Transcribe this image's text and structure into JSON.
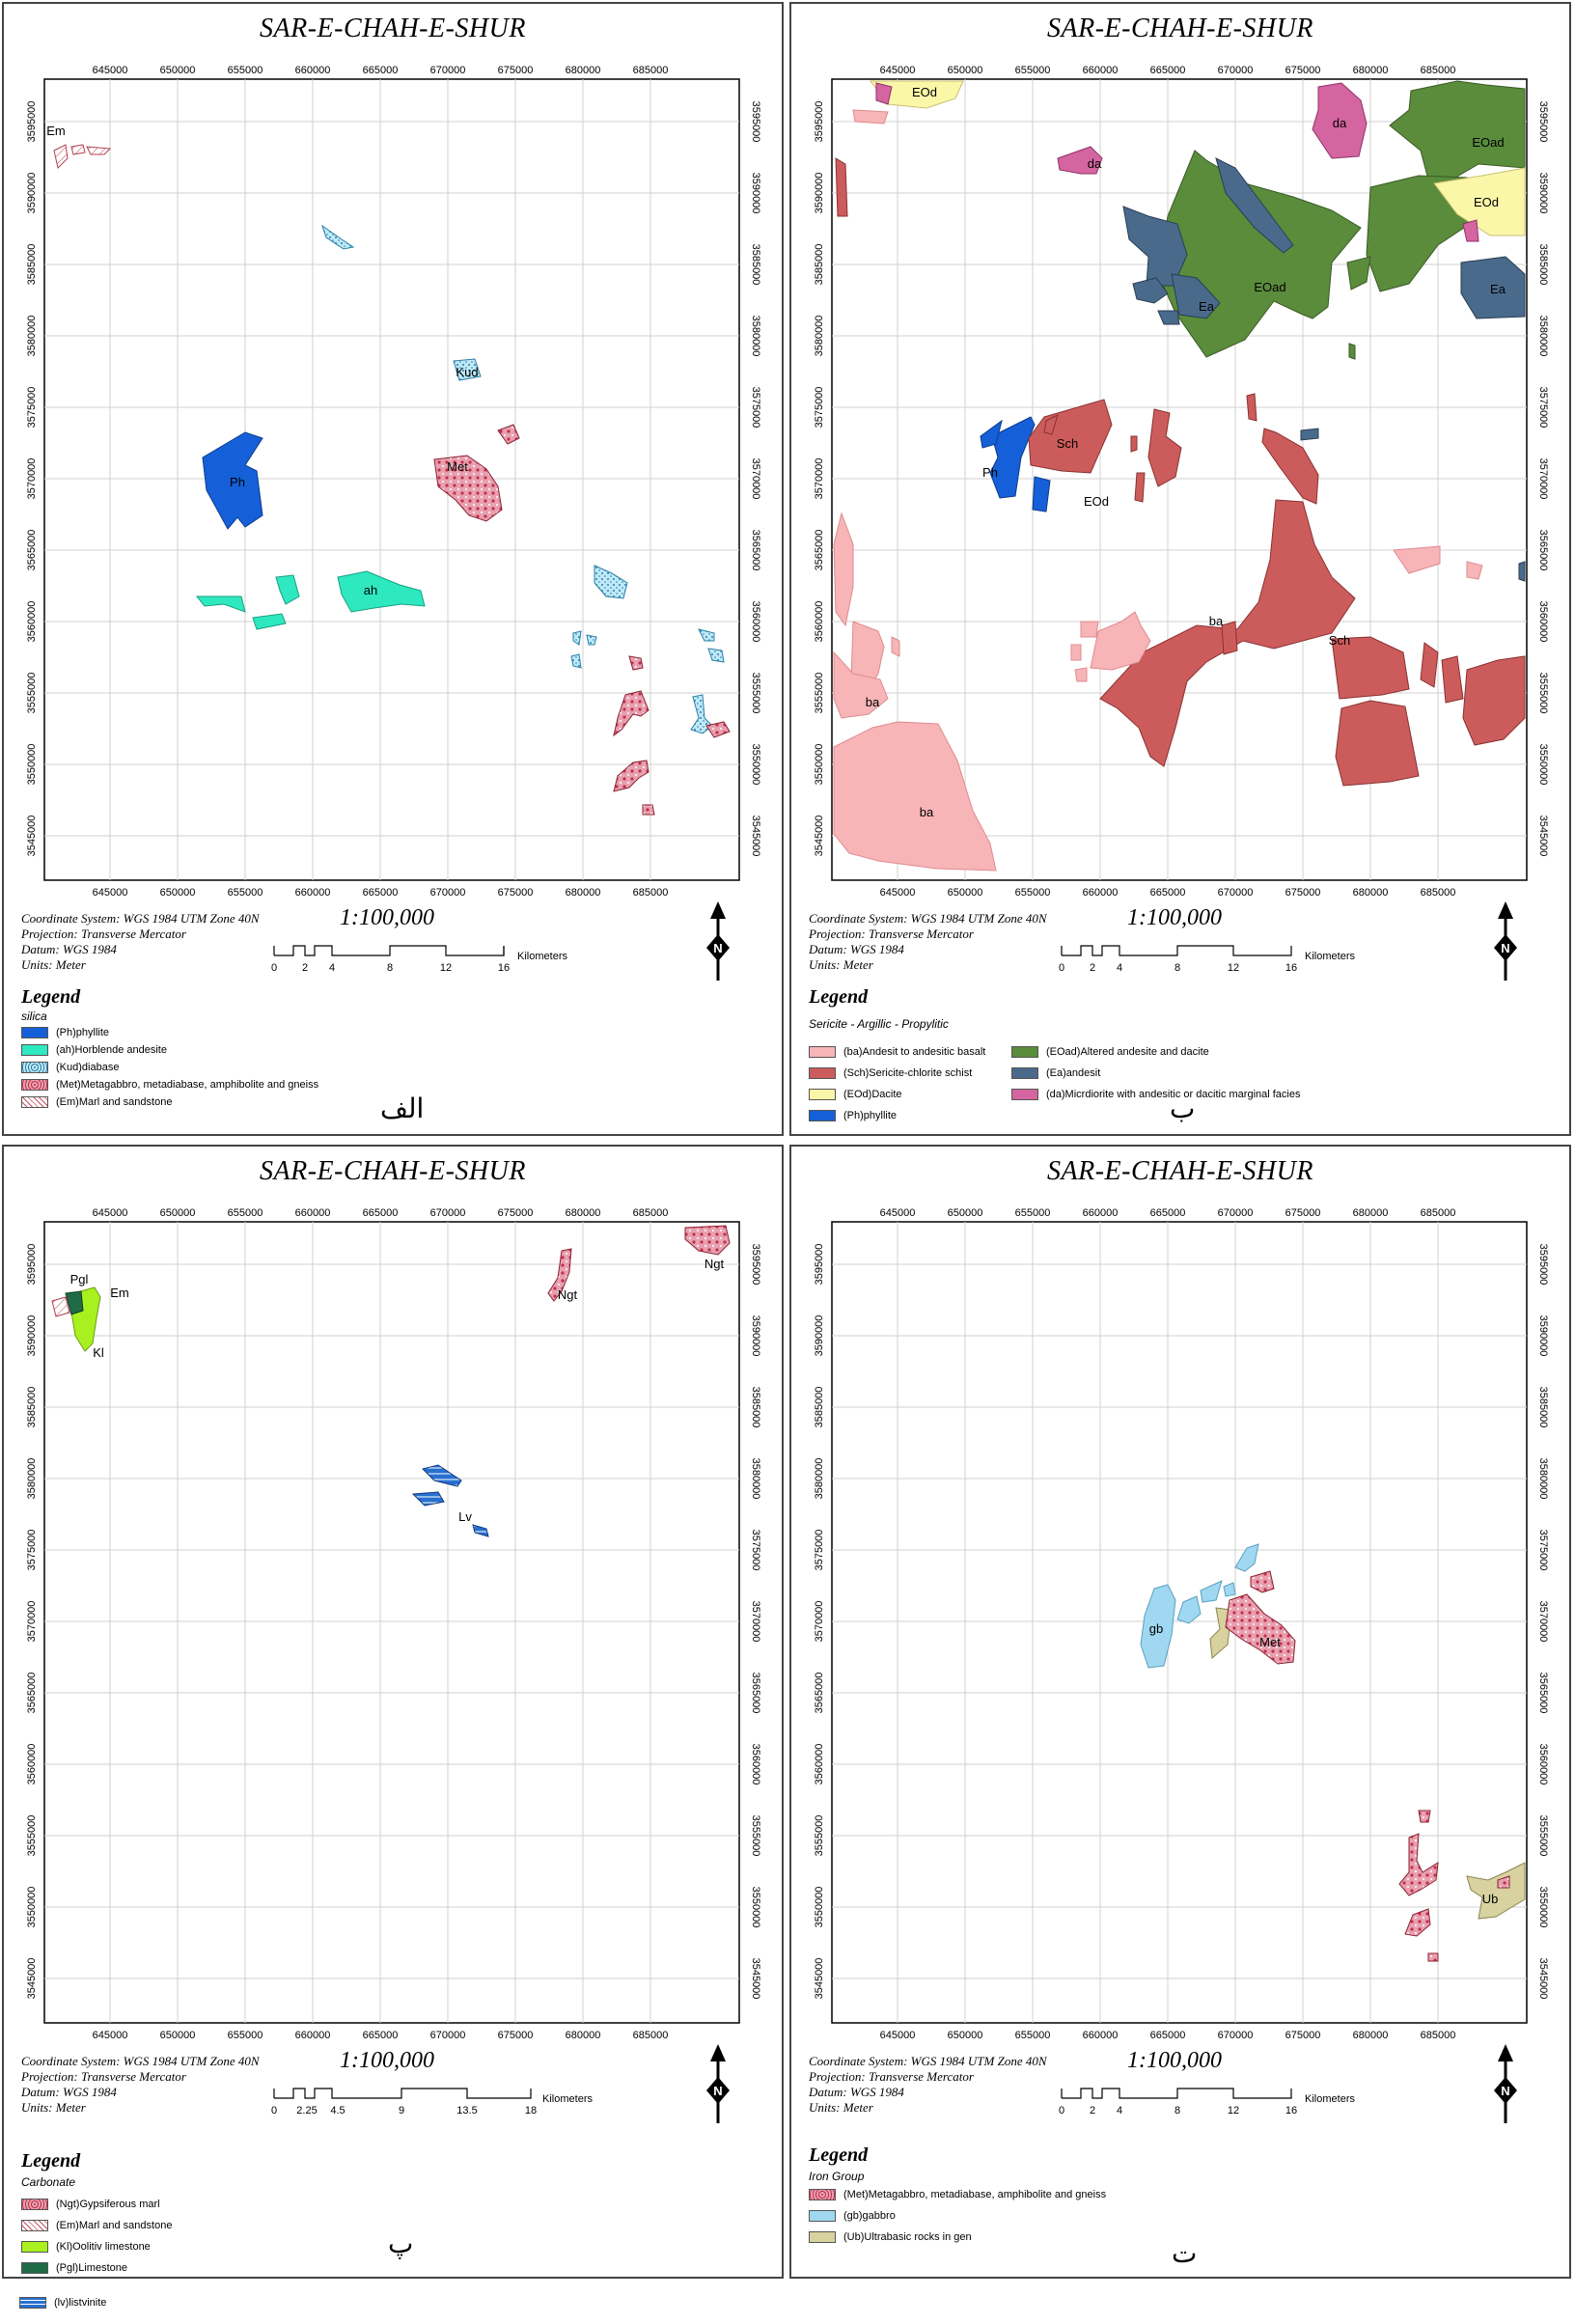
{
  "common": {
    "title": "SAR-E-CHAH-E-SHUR",
    "x_ticks": [
      "645000",
      "650000",
      "655000",
      "660000",
      "665000",
      "670000",
      "675000",
      "680000",
      "685000"
    ],
    "y_ticks": [
      "3595000",
      "3590000",
      "3585000",
      "3580000",
      "3575000",
      "3570000",
      "3565000",
      "3560000",
      "3555000",
      "3550000",
      "3545000"
    ],
    "coord_system": "Coordinate System: WGS 1984 UTM Zone 40N",
    "projection": "Projection: Transverse Mercator",
    "datum": "Datum: WGS 1984",
    "units": "Units: Meter",
    "scale": "1:100,000",
    "scale_unit": "Kilometers",
    "legend_heading": "Legend",
    "north_label": "N"
  },
  "panels": [
    {
      "letter": "الف",
      "subtitle": "silica",
      "scale_labels": [
        "0",
        "2",
        "4",
        "8",
        "12",
        "16"
      ],
      "legend": [
        {
          "label": "(Ph)phyllite",
          "color": "#1560d8"
        },
        {
          "label": "(ah)Horblende andesite",
          "color": "#2ee8c0"
        },
        {
          "label": "(Kud)diabase",
          "color": "#8fd8f0"
        },
        {
          "label": "(Met)Metagabbro, metadiabase, amphibolite and gneiss",
          "color": "#e8a0b0"
        },
        {
          "label": "(Em)Marl and sandstone",
          "color": "#ffffff"
        }
      ],
      "map_labels": [
        "Em",
        "Kud",
        "Ph",
        "Met",
        "ah"
      ]
    },
    {
      "letter": "ب",
      "subtitle": "Sericite - Argillic - Propylitic",
      "scale_labels": [
        "0",
        "2",
        "4",
        "8",
        "12",
        "16"
      ],
      "legend": [
        {
          "label": "(ba)Andesit to andesitic basalt",
          "color": "#f7b5b7"
        },
        {
          "label": "(EOad)Altered andesite and dacite",
          "color": "#5a8c3c"
        },
        {
          "label": "(Sch)Sericite-chlorite schist",
          "color": "#cc5c5c"
        },
        {
          "label": "(Ea)andesit",
          "color": "#4a6a8c"
        },
        {
          "label": "(EOd)Dacite",
          "color": "#fbf7a8"
        },
        {
          "label": "(da)Micrdiorite with andesitic or dacitic marginal facies",
          "color": "#d465a0"
        },
        {
          "label": "(Ph)phyllite",
          "color": "#1560d8"
        }
      ],
      "map_labels": [
        "EOd",
        "da",
        "da",
        "EOad",
        "EOd",
        "EOad",
        "Ea",
        "Ea",
        "Sch",
        "Ph",
        "EOd",
        "ba",
        "Sch",
        "ba",
        "ba"
      ]
    },
    {
      "letter": "پ",
      "subtitle": "Carbonate",
      "scale_labels": [
        "0",
        "2.25",
        "4.5",
        "9",
        "13.5",
        "18"
      ],
      "legend": [
        {
          "label": "(Ngt)Gypsiferous marl",
          "color": "#e8a0b0"
        },
        {
          "label": "(Em)Marl and sandstone",
          "color": "#ffffff"
        },
        {
          "label": "(Kl)Oolitiv limestone",
          "color": "#a8f020"
        },
        {
          "label": "(Pgl)Limestone",
          "color": "#1f6b45"
        },
        {
          "label": "(lv)listvinite",
          "color": "#2870d0"
        }
      ],
      "map_labels": [
        "Pgl",
        "Em",
        "Kl",
        "Ngt",
        "Ngt",
        "Lv"
      ]
    },
    {
      "letter": "ت",
      "subtitle": "Iron Group",
      "scale_labels": [
        "0",
        "2",
        "4",
        "8",
        "12",
        "16"
      ],
      "legend": [
        {
          "label": "(Met)Metagabbro, metadiabase, amphibolite and gneiss",
          "color": "#e8a0b0"
        },
        {
          "label": "(gb)gabbro",
          "color": "#9fd8f0"
        },
        {
          "label": "(Ub)Ultrabasic rocks in gen",
          "color": "#d8d2a0"
        }
      ],
      "map_labels": [
        "gb",
        "Met",
        "Ub"
      ]
    }
  ]
}
